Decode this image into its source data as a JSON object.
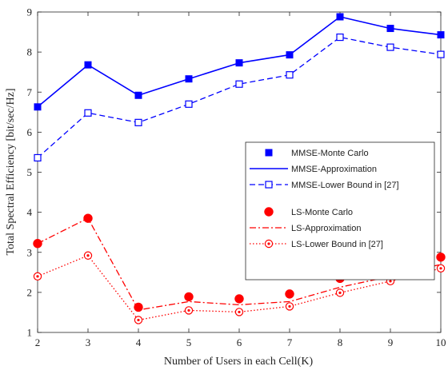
{
  "chart_data": {
    "type": "line",
    "xlabel": "Number of Users in each Cell(K)",
    "ylabel": "Total Spectral Efficiency [bit/sec/Hz]",
    "xlim": [
      2,
      10
    ],
    "ylim": [
      1,
      9
    ],
    "x_ticks": [
      "2",
      "3",
      "4",
      "5",
      "6",
      "7",
      "8",
      "9",
      "10"
    ],
    "y_ticks": [
      "1",
      "2",
      "3",
      "4",
      "5",
      "6",
      "7",
      "8",
      "9"
    ],
    "grid": false,
    "legend_position": "right-center",
    "x": [
      2,
      3,
      4,
      5,
      6,
      7,
      8,
      9,
      10
    ],
    "series": [
      {
        "name": "MMSE-Monte Carlo",
        "values": [
          6.63,
          7.68,
          6.92,
          7.33,
          7.73,
          7.93,
          8.88,
          8.59,
          8.43
        ],
        "color": "#0000ff",
        "style": "marker-square-filled"
      },
      {
        "name": "MMSE-Approximation",
        "values": [
          6.63,
          7.68,
          6.92,
          7.33,
          7.73,
          7.93,
          8.88,
          8.59,
          8.43
        ],
        "color": "#0000ff",
        "style": "solid"
      },
      {
        "name": "MMSE-Lower Bound in [27]",
        "values": [
          5.36,
          6.48,
          6.24,
          6.7,
          7.2,
          7.43,
          8.37,
          8.12,
          7.94
        ],
        "color": "#0000ff",
        "style": "dashed-square-open"
      },
      {
        "name": "LS-Monte Carlo",
        "values": [
          3.22,
          3.85,
          1.63,
          1.89,
          1.84,
          1.96,
          2.35,
          2.61,
          2.88
        ],
        "color": "#ff0000",
        "style": "marker-circle-filled"
      },
      {
        "name": "LS-Approximation",
        "values": [
          3.22,
          3.85,
          1.56,
          1.77,
          1.69,
          1.77,
          2.13,
          2.4,
          2.7
        ],
        "color": "#ff0000",
        "style": "dashdot"
      },
      {
        "name": "LS-Lower Bound in [27]",
        "values": [
          2.4,
          2.92,
          1.31,
          1.55,
          1.51,
          1.65,
          1.99,
          2.28,
          2.6
        ],
        "color": "#ff0000",
        "style": "dotted-circle-open"
      }
    ]
  }
}
